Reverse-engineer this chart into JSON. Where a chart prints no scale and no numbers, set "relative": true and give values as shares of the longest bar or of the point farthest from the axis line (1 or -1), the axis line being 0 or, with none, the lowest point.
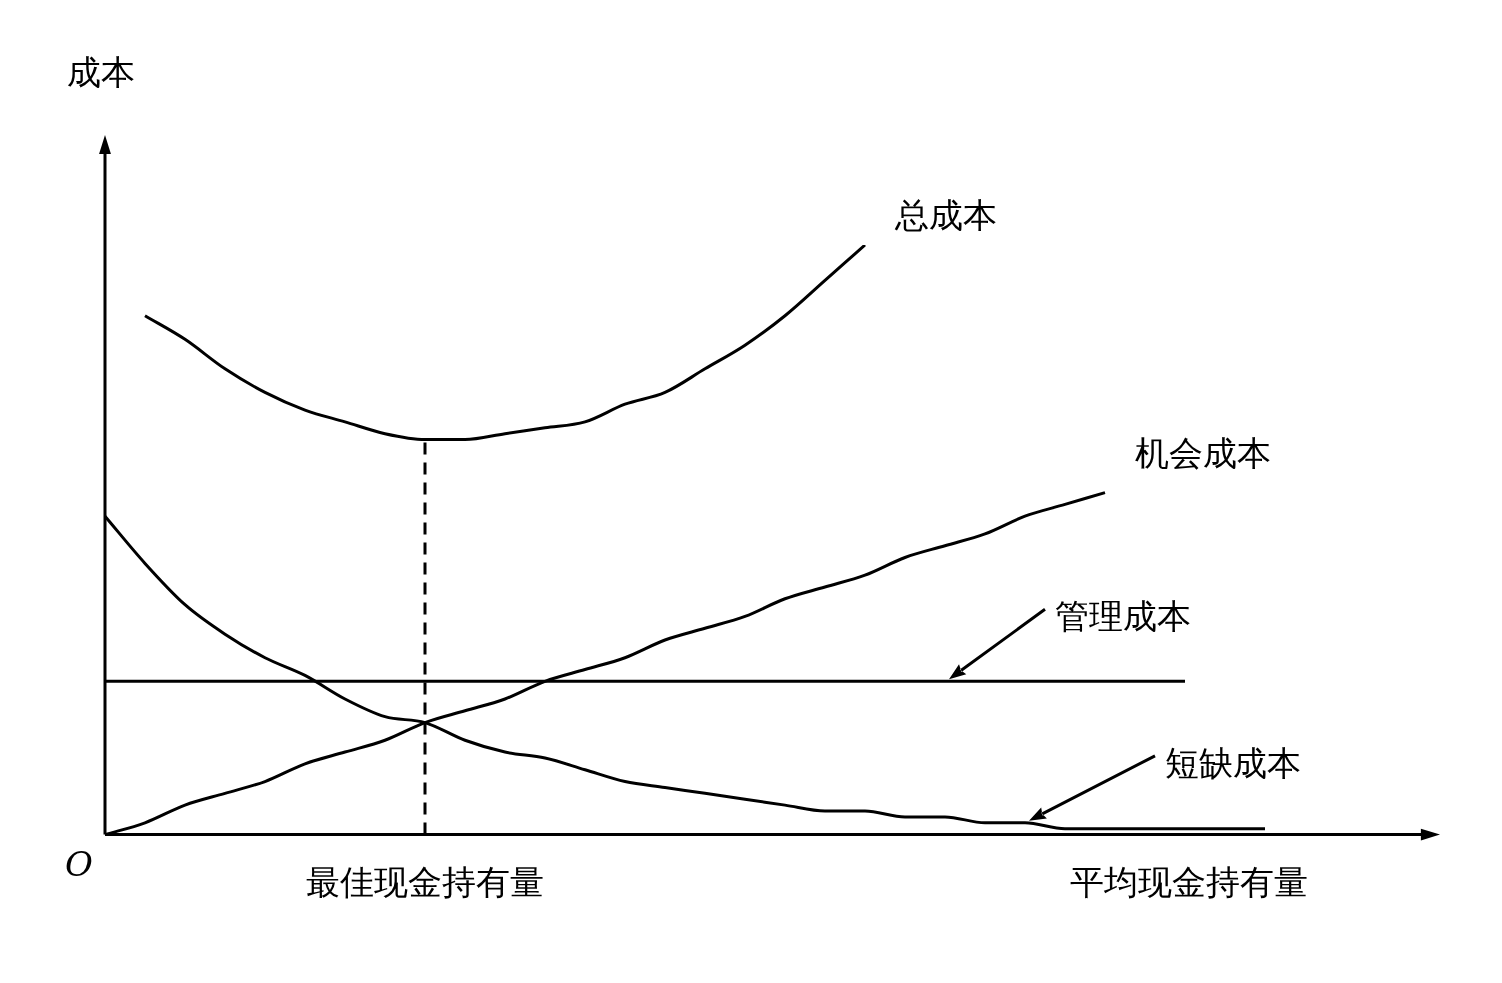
{
  "chart_data": {
    "type": "line",
    "relative": true,
    "ylabel": "成本",
    "xlabel": "平均现金持有量",
    "annotations": [
      "O",
      "最佳现金持有量"
    ],
    "legend": false,
    "grid": false,
    "marker": "none",
    "line_style": "solid",
    "categories": [
      null,
      null,
      null,
      null,
      null,
      null,
      null,
      null,
      null,
      null,
      null,
      null,
      null,
      null,
      null,
      null,
      null,
      null,
      null,
      null,
      null,
      null,
      null,
      null,
      null,
      null,
      null,
      null,
      null,
      null
    ],
    "series": [
      {
        "name": "总成本",
        "color": "#000000",
        "values": [
          null,
          0.88,
          0.84,
          0.79,
          0.75,
          0.72,
          0.7,
          0.68,
          0.67,
          0.67,
          0.68,
          0.69,
          0.7,
          0.73,
          0.75,
          0.79,
          0.83,
          0.88,
          0.94,
          1,
          null,
          null,
          null,
          null,
          null,
          null,
          null,
          null,
          null,
          null
        ]
      },
      {
        "name": "机会成本",
        "color": "#000000",
        "values": [
          0,
          0.02,
          0.05,
          0.07,
          0.09,
          0.12,
          0.14,
          0.16,
          0.19,
          0.21,
          0.23,
          0.26,
          0.28,
          0.3,
          0.33,
          0.35,
          0.37,
          0.4,
          0.42,
          0.44,
          0.47,
          0.49,
          0.51,
          0.54,
          0.56,
          0.58,
          null,
          null,
          null,
          null
        ]
      },
      {
        "name": "管理成本",
        "color": "#000000",
        "values": [
          0.26,
          0.26,
          0.26,
          0.26,
          0.26,
          0.26,
          0.26,
          0.26,
          0.26,
          0.26,
          0.26,
          0.26,
          0.26,
          0.26,
          0.26,
          0.26,
          0.26,
          0.26,
          0.26,
          0.26,
          0.26,
          0.26,
          0.26,
          0.26,
          0.26,
          0.26,
          0.26,
          0.26,
          null,
          null
        ]
      },
      {
        "name": "短缺成本",
        "color": "#000000",
        "values": [
          0.54,
          0.46,
          0.39,
          0.34,
          0.3,
          0.27,
          0.23,
          0.2,
          0.19,
          0.16,
          0.14,
          0.13,
          0.11,
          0.09,
          0.08,
          0.07,
          0.06,
          0.05,
          0.04,
          0.04,
          0.03,
          0.03,
          0.02,
          0.02,
          0.01,
          0.01,
          0.01,
          0.01,
          0.01,
          0.01
        ]
      }
    ]
  }
}
